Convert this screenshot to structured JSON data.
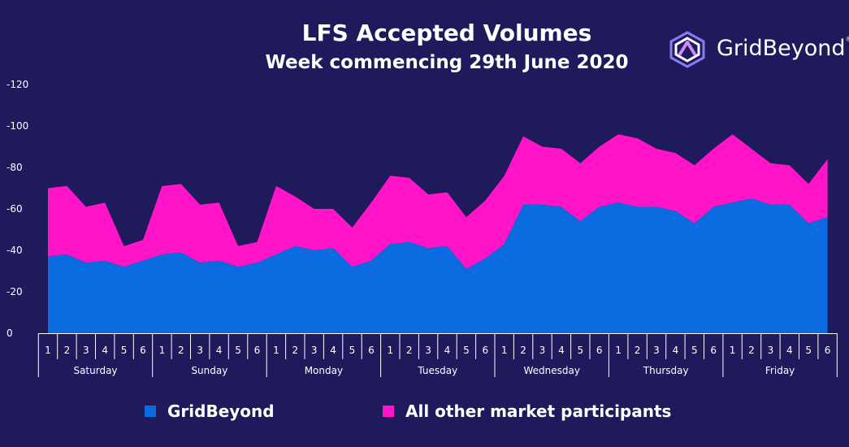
{
  "header": {
    "title": "LFS Accepted Volumes",
    "subtitle": "Week commencing 29th June 2020"
  },
  "logo": {
    "text": "GridBeyond",
    "mark": "®",
    "icon": "gridbeyond-logo-icon"
  },
  "colors": {
    "background": "#1e1a5c",
    "gridbeyond": "#0a6ae0",
    "others": "#ff14c8",
    "axis": "#ffffff"
  },
  "legend": [
    {
      "label": "GridBeyond",
      "color": "#0a6ae0"
    },
    {
      "label": "All other market participants",
      "color": "#ff14c8"
    }
  ],
  "chart_data": {
    "type": "area",
    "stacked": true,
    "title": "LFS Accepted Volumes",
    "subtitle": "Week commencing 29th June 2020",
    "y_ticks": [
      "-120",
      "-100",
      "-80",
      "-60",
      "-40",
      "-20",
      "0"
    ],
    "ylim": [
      0,
      -120
    ],
    "days": [
      "Saturday",
      "Sunday",
      "Monday",
      "Tuesday",
      "Wednesday",
      "Thursday",
      "Friday"
    ],
    "periods": [
      "1",
      "2",
      "3",
      "4",
      "5",
      "6"
    ],
    "series": [
      {
        "name": "GridBeyond",
        "color": "#0a6ae0",
        "values": [
          -37,
          -38,
          -34,
          -35,
          -32,
          -35,
          -38,
          -39,
          -34,
          -35,
          -32,
          -34,
          -38,
          -42,
          -40,
          -41,
          -32,
          -35,
          -43,
          -44,
          -41,
          -42,
          -31,
          -36,
          -43,
          -62,
          -62,
          -61,
          -54,
          -61,
          -63,
          -61,
          -61,
          -59,
          -53,
          -61,
          -63,
          -65,
          -62,
          -62,
          -53,
          -56
        ]
      },
      {
        "name": "All other market participants",
        "color": "#ff14c8",
        "values": [
          -33,
          -33,
          -27,
          -28,
          -10,
          -10,
          -33,
          -33,
          -28,
          -28,
          -10,
          -10,
          -33,
          -24,
          -20,
          -19,
          -19,
          -28,
          -33,
          -31,
          -26,
          -26,
          -25,
          -28,
          -33,
          -33,
          -28,
          -28,
          -28,
          -29,
          -33,
          -33,
          -28,
          -28,
          -28,
          -28,
          -33,
          -24,
          -20,
          -19,
          -19,
          -28
        ]
      }
    ]
  }
}
